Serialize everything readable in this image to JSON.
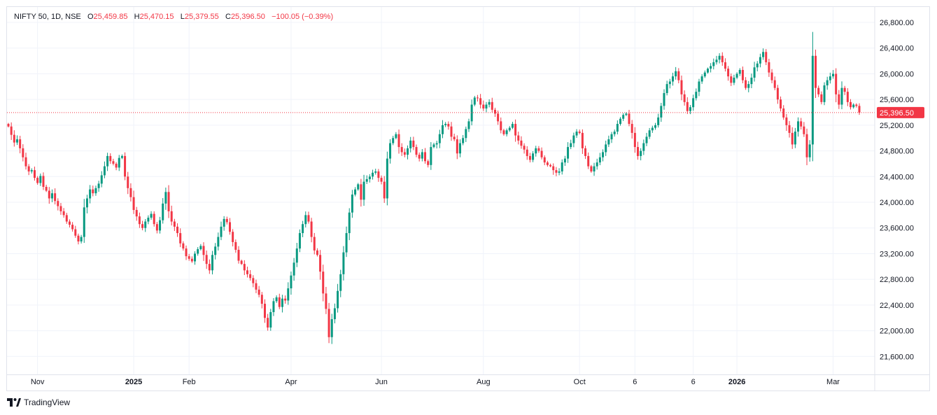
{
  "header": {
    "symbol": "NIFTY 50, 1D, NSE",
    "o_label": "O",
    "o_value": "25,459.85",
    "h_label": "H",
    "h_value": "25,470.15",
    "l_label": "L",
    "l_value": "25,379.55",
    "c_label": "C",
    "c_value": "25,396.50",
    "change": "−100.05 (−0.39%)"
  },
  "brand": {
    "name": "TradingView"
  },
  "colors": {
    "up": "#089981",
    "down": "#f23645",
    "grid": "#f0f3fa",
    "price_line": "#f23645"
  },
  "chart_data": {
    "type": "candlestick",
    "title": "NIFTY 50, 1D, NSE",
    "ylim": [
      21320,
      27040
    ],
    "y_ticks": [
      "26,800.00",
      "26,400.00",
      "26,000.00",
      "25,600.00",
      "25,200.00",
      "24,800.00",
      "24,400.00",
      "24,000.00",
      "23,600.00",
      "23,200.00",
      "22,800.00",
      "22,400.00",
      "22,000.00",
      "21,600.00"
    ],
    "y_tick_values": [
      26800,
      26400,
      26000,
      25600,
      25200,
      24800,
      24400,
      24000,
      23600,
      23200,
      22800,
      22400,
      22000,
      21600
    ],
    "x_ticks": [
      {
        "label": "Nov",
        "index": 10,
        "bold": false
      },
      {
        "label": "2025",
        "index": 43,
        "bold": true
      },
      {
        "label": "Feb",
        "index": 62,
        "bold": false
      },
      {
        "label": "Apr",
        "index": 97,
        "bold": false
      },
      {
        "label": "Jun",
        "index": 128,
        "bold": false
      },
      {
        "label": "Aug",
        "index": 163,
        "bold": false
      },
      {
        "label": "Oct",
        "index": 196,
        "bold": false
      },
      {
        "label": "6",
        "index": 215,
        "bold": false
      },
      {
        "label": "6",
        "index": 235,
        "bold": false
      },
      {
        "label": "2026",
        "index": 250,
        "bold": true
      },
      {
        "label": "Mar",
        "index": 283,
        "bold": false
      }
    ],
    "last_price": 25396.5,
    "last_price_label": "25,396.50",
    "closes": [
      25180,
      25050,
      24930,
      24980,
      24840,
      24700,
      24560,
      24480,
      24500,
      24380,
      24300,
      24410,
      24240,
      24180,
      24060,
      24140,
      24020,
      23940,
      23860,
      23800,
      23700,
      23650,
      23580,
      23480,
      23390,
      23460,
      23920,
      24060,
      24200,
      24140,
      24220,
      24290,
      24420,
      24560,
      24720,
      24640,
      24600,
      24540,
      24690,
      24720,
      24400,
      24220,
      24080,
      23880,
      23780,
      23660,
      23600,
      23700,
      23760,
      23820,
      23660,
      23560,
      23720,
      23980,
      24160,
      23860,
      23700,
      23620,
      23520,
      23360,
      23280,
      23160,
      23120,
      23080,
      23200,
      23270,
      23320,
      23180,
      23040,
      22940,
      23180,
      23310,
      23460,
      23620,
      23740,
      23690,
      23540,
      23380,
      23260,
      23090,
      23040,
      22940,
      22880,
      22820,
      22740,
      22640,
      22560,
      22420,
      22200,
      22050,
      22290,
      22460,
      22520,
      22370,
      22500,
      22470,
      22660,
      22860,
      23060,
      23280,
      23520,
      23660,
      23800,
      23700,
      23460,
      23250,
      23180,
      22920,
      22580,
      22340,
      21900,
      22180,
      22350,
      22620,
      22880,
      23220,
      23520,
      23840,
      24120,
      24200,
      24280,
      24040,
      24320,
      24360,
      24400,
      24460,
      24480,
      24380,
      24320,
      24060,
      24680,
      24920,
      25000,
      25060,
      24860,
      24780,
      24740,
      24840,
      24960,
      24860,
      24740,
      24680,
      24780,
      24640,
      24580,
      24860,
      24900,
      24920,
      25060,
      25200,
      25220,
      25180,
      25020,
      24980,
      24760,
      24920,
      25000,
      25140,
      25260,
      25520,
      25630,
      25620,
      25520,
      25460,
      25520,
      25560,
      25440,
      25380,
      25260,
      25120,
      25060,
      25120,
      25160,
      25220,
      25040,
      24960,
      24880,
      24820,
      24720,
      24660,
      24760,
      24840,
      24800,
      24700,
      24620,
      24580,
      24560,
      24500,
      24460,
      24480,
      24620,
      24680,
      24860,
      24920,
      25040,
      25100,
      25080,
      24840,
      24720,
      24560,
      24480,
      24560,
      24620,
      24700,
      24780,
      24900,
      24980,
      25060,
      25100,
      25220,
      25300,
      25360,
      25380,
      25220,
      25080,
      24860,
      24720,
      24800,
      24920,
      25020,
      25120,
      25160,
      25200,
      25320,
      25500,
      25700,
      25840,
      25880,
      25960,
      26040,
      25900,
      25680,
      25560,
      25420,
      25480,
      25620,
      25720,
      25880,
      25960,
      26020,
      26080,
      26120,
      26180,
      26220,
      26280,
      26180,
      26080,
      25960,
      25860,
      25940,
      26000,
      26060,
      25900,
      25780,
      25840,
      25940,
      26100,
      26160,
      26260,
      26340,
      26180,
      26020,
      25900,
      25780,
      25600,
      25460,
      25320,
      25200,
      25080,
      24900,
      25100,
      25260,
      25180,
      25060,
      24700,
      24900,
      26280,
      25780,
      25680,
      25560,
      25820,
      25900,
      25960,
      26000,
      25680,
      25520,
      25780,
      25720,
      25560,
      25480,
      25520,
      25500,
      25396.5
    ]
  }
}
